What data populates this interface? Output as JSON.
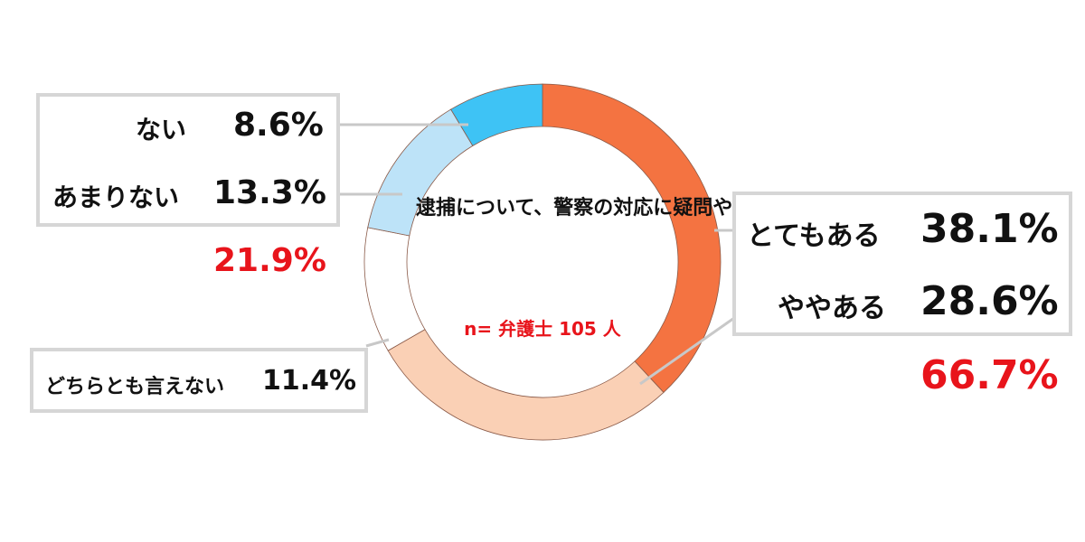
{
  "chart_data": {
    "type": "pie",
    "donut": true,
    "title": "逮捕について、警察の対応に疑問や不満はあるか？",
    "subtitle": "n= 弁護士 105 人",
    "slices": [
      {
        "label": "とてもある",
        "value": 38.1,
        "display": "38.1%",
        "color": "#F47341"
      },
      {
        "label": "ややある",
        "value": 28.6,
        "display": "28.6%",
        "color": "#FAD0B5"
      },
      {
        "label": "どちらとも言えない",
        "value": 11.4,
        "display": "11.4%",
        "color": "#FFFFFF"
      },
      {
        "label": "あまりない",
        "value": 13.3,
        "display": "13.3%",
        "color": "#BDE3F8"
      },
      {
        "label": "ない",
        "value": 8.6,
        "display": "8.6%",
        "color": "#3EC3F5"
      }
    ],
    "groups": [
      {
        "members": [
          "とてもある",
          "ややある"
        ],
        "total": "66.7%",
        "color": "#E8141B"
      },
      {
        "members": [
          "あまりない",
          "ない"
        ],
        "total": "21.9%",
        "color": "#E8141B"
      }
    ]
  }
}
